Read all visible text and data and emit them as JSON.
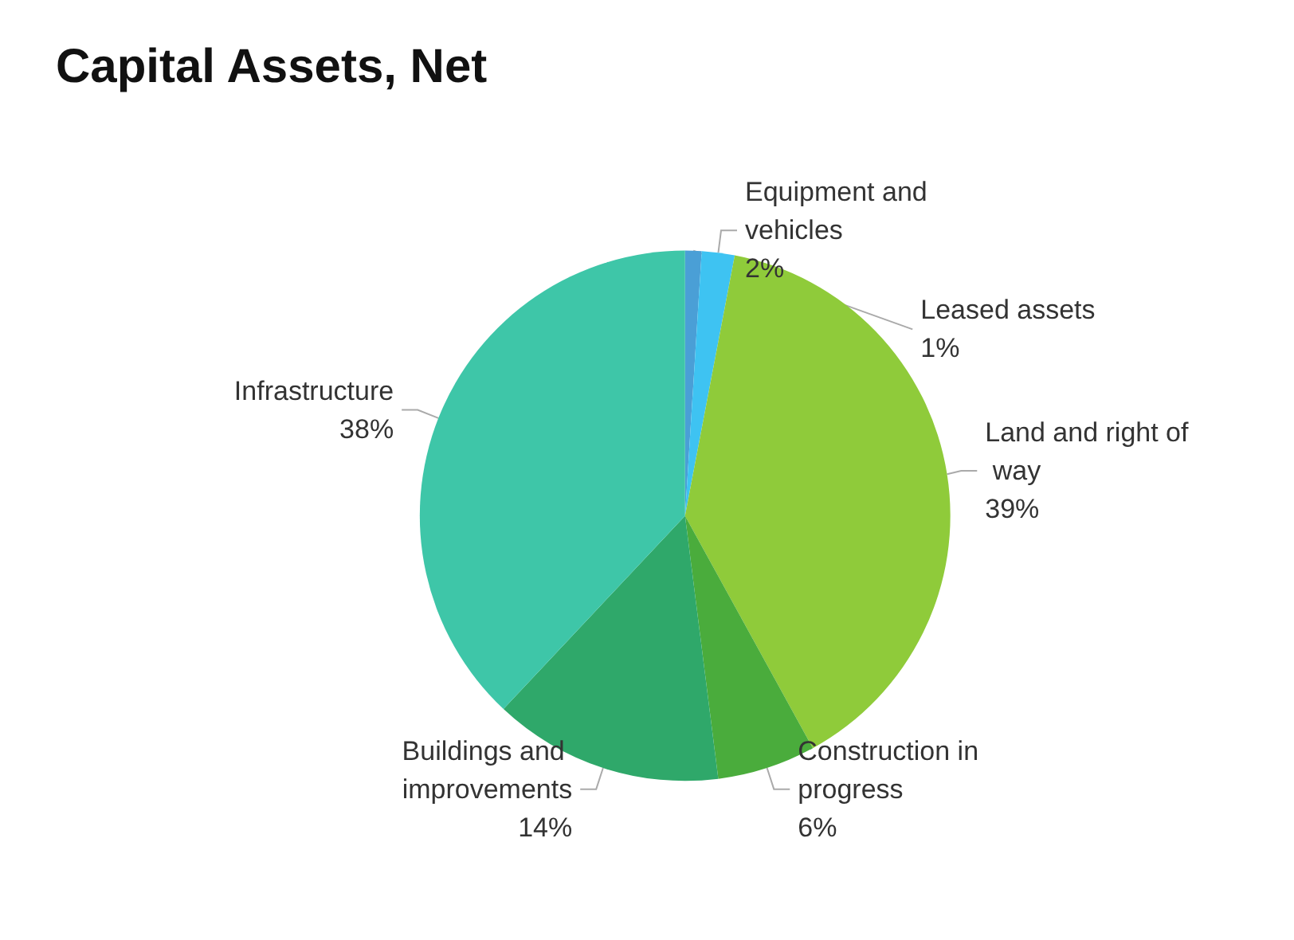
{
  "chart_data": {
    "type": "pie",
    "title": "Capital Assets, Net",
    "categories": [
      "Leased assets",
      "Equipment and vehicles",
      "Land and right of way",
      "Construction in progress",
      "Buildings and improvements",
      "Infrastructure"
    ],
    "values": [
      1,
      2,
      39,
      6,
      14,
      38
    ],
    "value_labels": [
      "1%",
      "2%",
      "39%",
      "6%",
      "14%",
      "38%"
    ],
    "colors": [
      "#4a9fd6",
      "#3ec3f2",
      "#8fcb3a",
      "#4aac3c",
      "#2fa86a",
      "#3ec6a8"
    ],
    "legend": false
  }
}
